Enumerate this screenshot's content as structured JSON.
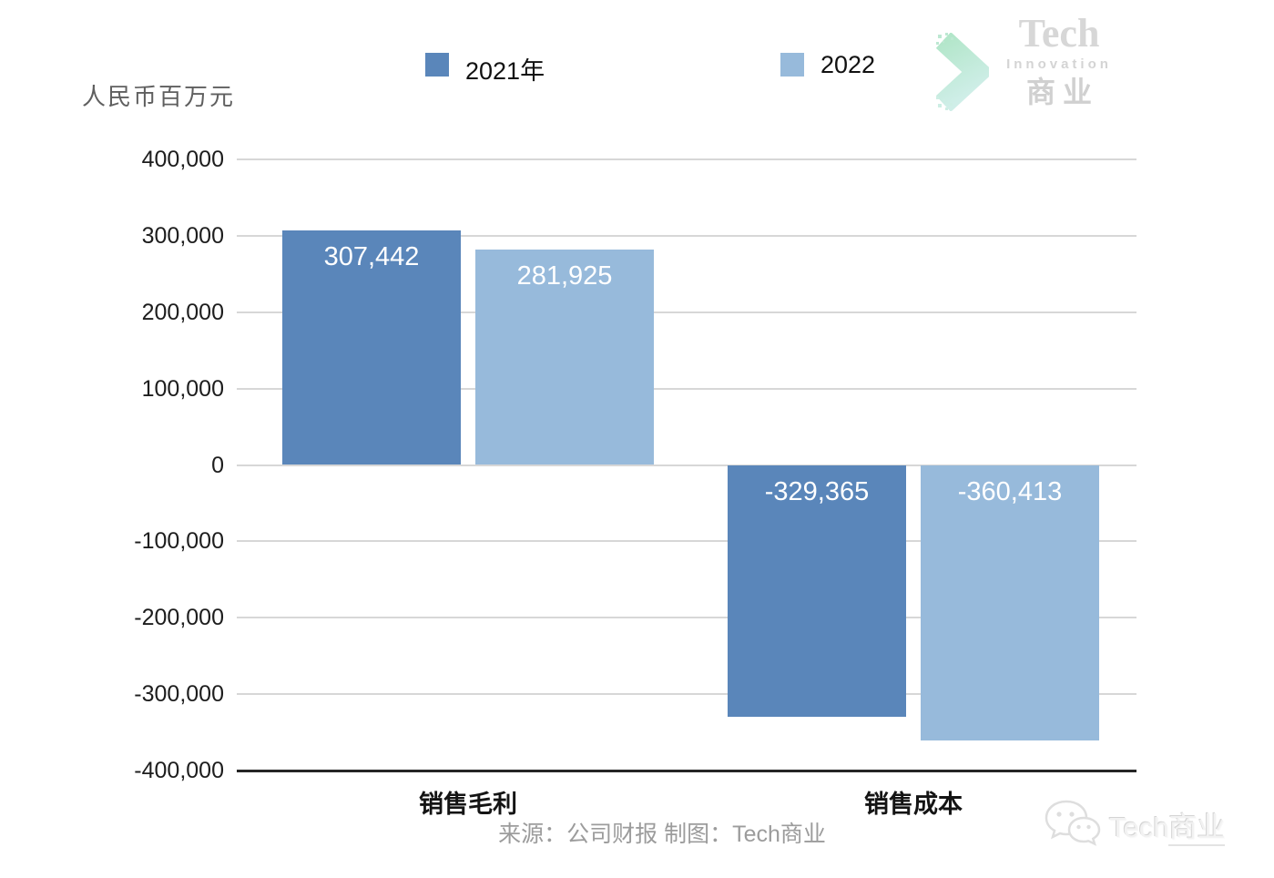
{
  "chart_data": {
    "type": "bar",
    "title": "",
    "unit_label": "人民币百万元",
    "categories": [
      "销售毛利",
      "销售成本"
    ],
    "series": [
      {
        "name": "2021年",
        "color": "#5a86ba",
        "values": [
          307442,
          -329365
        ],
        "labels": [
          "307,442",
          "-329,365"
        ]
      },
      {
        "name": "2022",
        "color": "#97badb",
        "values": [
          281925,
          -360413
        ],
        "labels": [
          "281,925",
          "-360,413"
        ]
      }
    ],
    "y_ticks": [
      {
        "label": "400,000",
        "value": 400000
      },
      {
        "label": "300,000",
        "value": 300000
      },
      {
        "label": "200,000",
        "value": 200000
      },
      {
        "label": "100,000",
        "value": 100000
      },
      {
        "label": "0",
        "value": 0
      },
      {
        "label": "-100,000",
        "value": -100000
      },
      {
        "label": "-200,000",
        "value": -200000
      },
      {
        "label": "-300,000",
        "value": -300000
      },
      {
        "label": "-400,000",
        "value": -400000
      }
    ],
    "ylim": [
      -400000,
      400000
    ],
    "grid": true,
    "legend_position": "top",
    "xlabel": "",
    "ylabel": "人民币百万元"
  },
  "legend": {
    "items": [
      {
        "label": "2021年",
        "color": "#5a86ba"
      },
      {
        "label": "2022",
        "color": "#97badb"
      }
    ]
  },
  "source_note": "来源：公司财报 制图：Tech商业",
  "logo": {
    "word1": "Tech",
    "word2": "Innovation",
    "word3": "商业"
  },
  "watermark": {
    "brand_en": "Tech",
    "brand_cn": "商业"
  },
  "colors": {
    "bar_2021": "#5a86ba",
    "bar_2022": "#97badb",
    "gridline": "#d7d7d7",
    "axis_line": "#262626",
    "tick_text": "#1d1d1d",
    "source_text": "#9c9c9c",
    "logo_gray": "#d7d7d7",
    "logo_mint": "#b2e6c9",
    "logo_aqua": "#cfeee8",
    "watermark_gray": "#dedede"
  }
}
